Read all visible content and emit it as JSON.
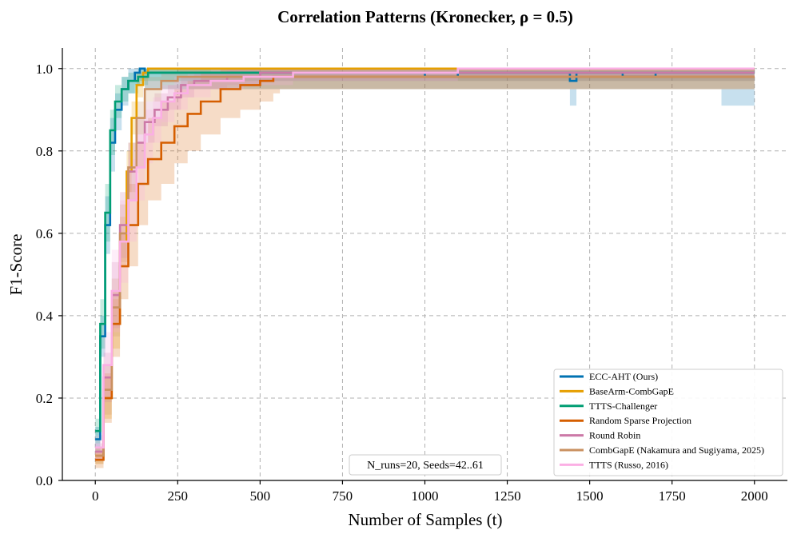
{
  "chart_data": {
    "type": "line",
    "title": "Correlation Patterns (Kronecker, ρ = 0.5)",
    "xlabel": "Number of Samples (t)",
    "ylabel": "F1-Score",
    "xlim": [
      -100,
      2100
    ],
    "ylim": [
      0.0,
      1.05
    ],
    "xticks": [
      0,
      250,
      500,
      750,
      1000,
      1250,
      1500,
      1750,
      2000
    ],
    "yticks": [
      0.0,
      0.2,
      0.4,
      0.6,
      0.8,
      1.0
    ],
    "xtick_labels": [
      "0",
      "250",
      "500",
      "750",
      "1000",
      "1250",
      "1500",
      "1750",
      "2000"
    ],
    "ytick_labels": [
      "0.0",
      "0.2",
      "0.4",
      "0.6",
      "0.8",
      "1.0"
    ],
    "grid": true,
    "legend_position": "lower-right",
    "annotation": "N_runs=20, Seeds=42..61",
    "series": [
      {
        "name": "ECC-AHT (Ours)",
        "color": "#0072b2",
        "x": [
          0,
          15,
          30,
          45,
          60,
          80,
          100,
          120,
          135,
          150,
          300,
          600,
          1000,
          1100,
          1300,
          1440,
          1460,
          1600,
          1700,
          1900,
          2000
        ],
        "y": [
          0.1,
          0.35,
          0.62,
          0.82,
          0.9,
          0.95,
          0.97,
          0.99,
          1.0,
          0.99,
          0.99,
          0.99,
          0.98,
          0.99,
          0.99,
          0.97,
          0.99,
          0.98,
          0.99,
          0.99,
          0.99
        ],
        "lower": [
          0.07,
          0.3,
          0.55,
          0.75,
          0.85,
          0.91,
          0.94,
          0.96,
          0.97,
          0.95,
          0.95,
          0.95,
          0.95,
          0.95,
          0.95,
          0.91,
          0.95,
          0.95,
          0.95,
          0.91,
          0.95
        ],
        "upper": [
          0.13,
          0.4,
          0.69,
          0.88,
          0.94,
          0.98,
          1.0,
          1.0,
          1.0,
          1.0,
          1.0,
          1.0,
          1.0,
          1.0,
          1.0,
          1.0,
          1.0,
          1.0,
          1.0,
          1.0,
          1.0
        ]
      },
      {
        "name": "BaseArm-CombGapE",
        "color": "#e69f00",
        "x": [
          0,
          25,
          50,
          75,
          95,
          110,
          125,
          145,
          160,
          300,
          1000,
          2000
        ],
        "y": [
          0.06,
          0.2,
          0.38,
          0.58,
          0.75,
          0.88,
          0.96,
          0.99,
          1.0,
          1.0,
          1.0,
          1.0
        ],
        "lower": [
          0.04,
          0.15,
          0.32,
          0.52,
          0.7,
          0.84,
          0.93,
          0.97,
          0.99,
          0.99,
          0.99,
          0.99
        ],
        "upper": [
          0.08,
          0.25,
          0.44,
          0.64,
          0.8,
          0.92,
          0.99,
          1.0,
          1.0,
          1.0,
          1.0,
          1.0
        ]
      },
      {
        "name": "TTTS-Challenger",
        "color": "#009e73",
        "x": [
          0,
          15,
          30,
          45,
          60,
          80,
          100,
          130,
          160,
          250,
          1000,
          2000
        ],
        "y": [
          0.12,
          0.38,
          0.65,
          0.85,
          0.92,
          0.95,
          0.97,
          0.98,
          0.99,
          0.99,
          0.99,
          0.99
        ],
        "lower": [
          0.09,
          0.32,
          0.58,
          0.79,
          0.88,
          0.92,
          0.94,
          0.96,
          0.97,
          0.97,
          0.97,
          0.97
        ],
        "upper": [
          0.15,
          0.44,
          0.72,
          0.9,
          0.96,
          0.98,
          0.99,
          1.0,
          1.0,
          1.0,
          1.0,
          1.0
        ]
      },
      {
        "name": "Random Sparse Projection",
        "color": "#d55e00",
        "x": [
          0,
          25,
          50,
          75,
          100,
          130,
          160,
          200,
          240,
          280,
          320,
          380,
          440,
          500,
          540,
          560,
          600,
          2000
        ],
        "y": [
          0.05,
          0.2,
          0.38,
          0.52,
          0.62,
          0.72,
          0.78,
          0.82,
          0.86,
          0.89,
          0.92,
          0.95,
          0.96,
          0.97,
          0.98,
          0.98,
          0.98,
          0.98
        ],
        "lower": [
          0.03,
          0.14,
          0.3,
          0.44,
          0.52,
          0.62,
          0.68,
          0.72,
          0.77,
          0.8,
          0.84,
          0.88,
          0.9,
          0.92,
          0.94,
          0.95,
          0.95,
          0.95
        ],
        "upper": [
          0.07,
          0.26,
          0.46,
          0.6,
          0.72,
          0.82,
          0.88,
          0.92,
          0.95,
          0.97,
          0.99,
          1.0,
          1.0,
          1.0,
          1.0,
          1.0,
          1.0,
          1.0
        ]
      },
      {
        "name": "Round Robin",
        "color": "#cc79a7",
        "x": [
          0,
          25,
          50,
          75,
          100,
          125,
          150,
          180,
          220,
          260,
          300,
          400,
          500,
          2000
        ],
        "y": [
          0.07,
          0.25,
          0.45,
          0.62,
          0.75,
          0.82,
          0.87,
          0.9,
          0.93,
          0.96,
          0.97,
          0.98,
          0.99,
          0.99
        ],
        "lower": [
          0.05,
          0.19,
          0.37,
          0.54,
          0.68,
          0.76,
          0.82,
          0.86,
          0.9,
          0.93,
          0.95,
          0.96,
          0.97,
          0.97
        ],
        "upper": [
          0.09,
          0.31,
          0.53,
          0.7,
          0.82,
          0.88,
          0.92,
          0.94,
          0.96,
          0.98,
          0.99,
          1.0,
          1.0,
          1.0
        ]
      },
      {
        "name": "CombGapE (Nakamura and Sugiyama, 2025)",
        "color": "#ca9161",
        "x": [
          0,
          25,
          50,
          75,
          100,
          125,
          150,
          200,
          250,
          1000,
          2000
        ],
        "y": [
          0.06,
          0.22,
          0.42,
          0.6,
          0.76,
          0.88,
          0.95,
          0.97,
          0.98,
          0.98,
          0.98
        ],
        "lower": [
          0.04,
          0.16,
          0.35,
          0.53,
          0.7,
          0.84,
          0.92,
          0.95,
          0.95,
          0.95,
          0.95
        ],
        "upper": [
          0.08,
          0.28,
          0.49,
          0.67,
          0.82,
          0.92,
          0.98,
          0.99,
          1.0,
          1.0,
          1.0
        ]
      },
      {
        "name": "TTTS (Russo, 2016)",
        "color": "#fbafe4",
        "x": [
          0,
          25,
          50,
          75,
          100,
          125,
          150,
          175,
          200,
          240,
          280,
          350,
          450,
          600,
          800,
          1100,
          1150,
          2000
        ],
        "y": [
          0.08,
          0.28,
          0.46,
          0.58,
          0.68,
          0.76,
          0.84,
          0.88,
          0.92,
          0.94,
          0.96,
          0.97,
          0.98,
          0.99,
          0.99,
          1.0,
          1.0,
          1.0
        ],
        "lower": [
          0.05,
          0.2,
          0.36,
          0.48,
          0.58,
          0.68,
          0.77,
          0.82,
          0.87,
          0.9,
          0.93,
          0.95,
          0.96,
          0.97,
          0.97,
          0.98,
          0.98,
          0.98
        ],
        "upper": [
          0.11,
          0.36,
          0.56,
          0.68,
          0.78,
          0.84,
          0.9,
          0.93,
          0.96,
          0.98,
          0.99,
          1.0,
          1.0,
          1.0,
          1.0,
          1.0,
          1.0,
          1.0
        ]
      }
    ]
  }
}
